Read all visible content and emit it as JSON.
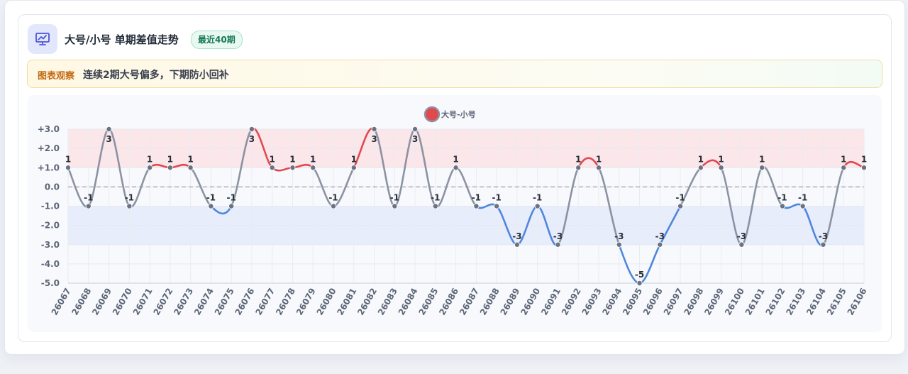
{
  "header": {
    "icon": "presentation-chart-icon",
    "title": "大号/小号 单期差值走势",
    "badge": "最近40期"
  },
  "note": {
    "label": "图表观察",
    "text": "连续2期大号偏多，下期防小回补"
  },
  "colors": {
    "positive": "#e04a4f",
    "negative": "#4f86dc",
    "neutral": "#8b93a3",
    "positive_band": "#fbe6ea",
    "negative_band": "#e7edfb"
  },
  "chart_data": {
    "type": "line",
    "title": "",
    "xlabel": "",
    "ylabel": "",
    "ylim": [
      -5,
      3
    ],
    "yticks": [
      "+3.0",
      "+2.0",
      "+1.0",
      "0.0",
      "-1.0",
      "-2.0",
      "-3.0",
      "-4.0",
      "-5.0"
    ],
    "yticks_values": [
      3,
      2,
      1,
      0,
      -1,
      -2,
      -3,
      -4,
      -5
    ],
    "bands": [
      {
        "from": 1,
        "to": 3,
        "kind": "positive"
      },
      {
        "from": -3,
        "to": -1,
        "kind": "negative"
      }
    ],
    "zero_line": "dashed",
    "grid": true,
    "legend": "top-center",
    "categories": [
      "26067",
      "26068",
      "26069",
      "26070",
      "26071",
      "26072",
      "26073",
      "26074",
      "26075",
      "26076",
      "26077",
      "26078",
      "26079",
      "26080",
      "26081",
      "26082",
      "26083",
      "26084",
      "26085",
      "26086",
      "26087",
      "26088",
      "26089",
      "26090",
      "26091",
      "26092",
      "26093",
      "26094",
      "26095",
      "26096",
      "26097",
      "26098",
      "26099",
      "26100",
      "26101",
      "26102",
      "26103",
      "26104",
      "26105",
      "26106"
    ],
    "series": [
      {
        "name": "大号-小号",
        "values": [
          1,
          -1,
          3,
          -1,
          1,
          1,
          1,
          -1,
          -1,
          3,
          1,
          1,
          1,
          -1,
          1,
          3,
          -1,
          3,
          -1,
          1,
          -1,
          -1,
          -3,
          -1,
          -3,
          1,
          1,
          -3,
          -5,
          -3,
          -1,
          1,
          1,
          -3,
          1,
          -1,
          -1,
          -3,
          1,
          1
        ]
      }
    ]
  }
}
